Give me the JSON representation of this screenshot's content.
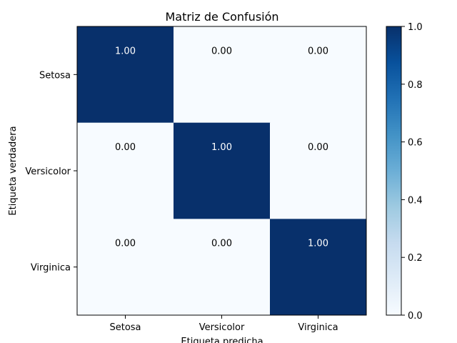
{
  "chart_data": {
    "type": "heatmap",
    "title": "Matriz de Confusión",
    "xlabel": "Etiqueta predicha",
    "ylabel": "Etiqueta verdadera",
    "x_categories": [
      "Setosa",
      "Versicolor",
      "Virginica"
    ],
    "y_categories": [
      "Setosa",
      "Versicolor",
      "Virginica"
    ],
    "values": [
      [
        1.0,
        0.0,
        0.0
      ],
      [
        0.0,
        1.0,
        0.0
      ],
      [
        0.0,
        0.0,
        1.0
      ]
    ],
    "cell_labels": [
      [
        "1.00",
        "0.00",
        "0.00"
      ],
      [
        "0.00",
        "1.00",
        "0.00"
      ],
      [
        "0.00",
        "0.00",
        "1.00"
      ]
    ],
    "colorbar": {
      "min": 0.0,
      "max": 1.0,
      "ticks": [
        "0.0",
        "0.2",
        "0.4",
        "0.6",
        "0.8",
        "1.0"
      ],
      "colormap": "Blues",
      "low_color": "#f7fbff",
      "high_color": "#08306b"
    },
    "grid": false
  }
}
